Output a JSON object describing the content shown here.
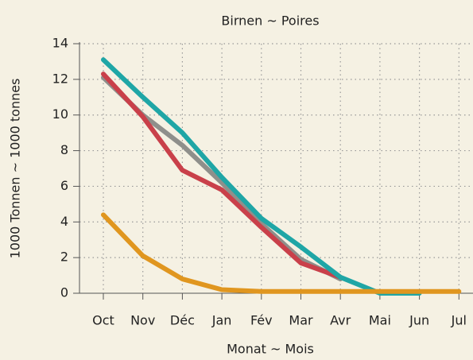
{
  "chart_data": {
    "type": "line",
    "title": "Birnen  ~  Poires",
    "x_label": "Monat  ~  Mois",
    "y_label": "1000 Tonnen  ~  1000 tonnes",
    "categories": [
      "Oct",
      "Nov",
      "Déc",
      "Jan",
      "Fév",
      "Mar",
      "Avr",
      "Mai",
      "Jun",
      "Jul"
    ],
    "series": [
      {
        "color": "#8f8f8b",
        "values": [
          12.1,
          10.0,
          8.3,
          6.2,
          3.9,
          1.9,
          0.8,
          null,
          null,
          null
        ]
      },
      {
        "color": "#c9404a",
        "values": [
          12.3,
          9.9,
          6.9,
          5.8,
          3.7,
          1.7,
          0.9,
          null,
          null,
          null
        ]
      },
      {
        "color": "#1fa6a6",
        "values": [
          13.1,
          11.0,
          9.0,
          6.5,
          4.2,
          2.6,
          0.9,
          0,
          0,
          null
        ]
      },
      {
        "color": "#e0961f",
        "values": [
          4.4,
          2.1,
          0.8,
          0.2,
          0.1,
          0.1,
          0.1,
          0.1,
          0.1,
          0.1
        ]
      }
    ],
    "ylim": [
      0,
      14
    ],
    "yticks": [
      0,
      2,
      4,
      6,
      8,
      10,
      12,
      14
    ],
    "grid": true
  }
}
